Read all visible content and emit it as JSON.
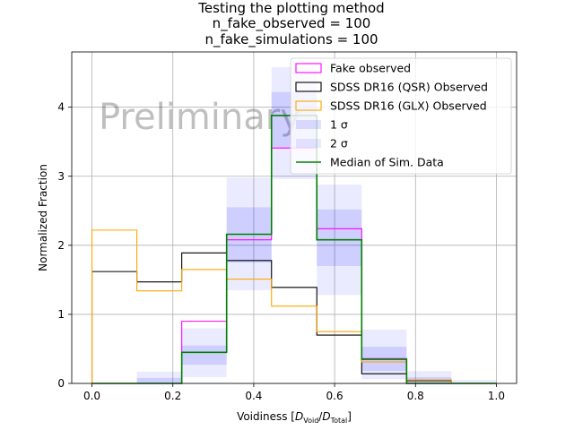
{
  "chart_data": {
    "type": "histogram",
    "title_lines": [
      "Testing the plotting method",
      "n_fake_observed = 100",
      "n_fake_simulations = 100"
    ],
    "xlabel": "Voidiness [D_Void/D_Total]",
    "xlabel_parts": {
      "main": "Voidiness [",
      "d1": "D",
      "s1": "Void",
      "slash": "/",
      "d2": "D",
      "s2": "Total",
      "close": "]"
    },
    "ylabel": "Normalized Fraction",
    "xlim": [
      -0.05,
      1.05
    ],
    "ylim": [
      0,
      4.8
    ],
    "x_ticks": [
      0.0,
      0.2,
      0.4,
      0.6,
      0.8,
      1.0
    ],
    "x_tick_labels": [
      "0.0",
      "0.2",
      "0.4",
      "0.6",
      "0.8",
      "1.0"
    ],
    "y_ticks": [
      0,
      1,
      2,
      3,
      4
    ],
    "y_tick_labels": [
      "0",
      "1",
      "2",
      "3",
      "4"
    ],
    "grid": true,
    "watermark": "Preliminary",
    "legend_position": "upper-right",
    "bin_edges": [
      0.0,
      0.111,
      0.222,
      0.333,
      0.444,
      0.556,
      0.667,
      0.778,
      0.889,
      1.0
    ],
    "series": [
      {
        "name": "Fake observed",
        "kind": "step-outline",
        "color": "#ff00ff",
        "values": [
          0.0,
          0.0,
          0.9,
          2.08,
          3.41,
          2.24,
          0.36,
          0.0,
          0.0
        ]
      },
      {
        "name": "SDSS DR16 (QSR) Observed",
        "kind": "step-outline",
        "color": "#000000",
        "values": [
          1.62,
          1.47,
          1.89,
          1.78,
          1.39,
          0.7,
          0.14,
          0.04,
          0.0
        ]
      },
      {
        "name": "SDSS DR16 (GLX) Observed",
        "kind": "step-outline",
        "color": "#ffa500",
        "values": [
          2.22,
          1.34,
          1.65,
          1.51,
          1.12,
          0.75,
          0.31,
          0.05,
          0.0
        ]
      },
      {
        "name": "1 σ",
        "kind": "band",
        "color": "#0000ff",
        "opacity": 0.12,
        "lower": [
          0.0,
          0.0,
          0.27,
          1.75,
          3.42,
          1.7,
          0.18,
          0.0,
          0.0
        ],
        "upper": [
          0.0,
          0.08,
          0.55,
          2.55,
          4.22,
          2.52,
          0.53,
          0.09,
          0.0
        ]
      },
      {
        "name": "2 σ",
        "kind": "band",
        "color": "#0000ff",
        "opacity": 0.08,
        "lower": [
          0.0,
          0.0,
          0.09,
          1.35,
          2.96,
          1.28,
          0.06,
          0.0,
          0.0
        ],
        "upper": [
          0.0,
          0.17,
          0.8,
          2.98,
          4.58,
          2.88,
          0.78,
          0.18,
          0.05
        ]
      },
      {
        "name": "Median of Sim. Data",
        "kind": "step-line",
        "color": "#008000",
        "values": [
          0.0,
          0.0,
          0.45,
          2.16,
          3.88,
          2.08,
          0.35,
          0.0,
          0.0
        ]
      }
    ],
    "legend": [
      {
        "label": "Fake observed",
        "swatch": "outline",
        "color": "#ff00ff"
      },
      {
        "label": "SDSS DR16 (QSR) Observed",
        "swatch": "outline",
        "color": "#000000"
      },
      {
        "label": "SDSS DR16 (GLX) Observed",
        "swatch": "outline",
        "color": "#ffa500"
      },
      {
        "label": "1 σ",
        "swatch": "fill",
        "color": "#0000ff",
        "opacity": 0.12
      },
      {
        "label": "2 σ",
        "swatch": "fill",
        "color": "#0000ff",
        "opacity": 0.08
      },
      {
        "label": "Median of Sim. Data",
        "swatch": "line",
        "color": "#008000"
      }
    ]
  }
}
